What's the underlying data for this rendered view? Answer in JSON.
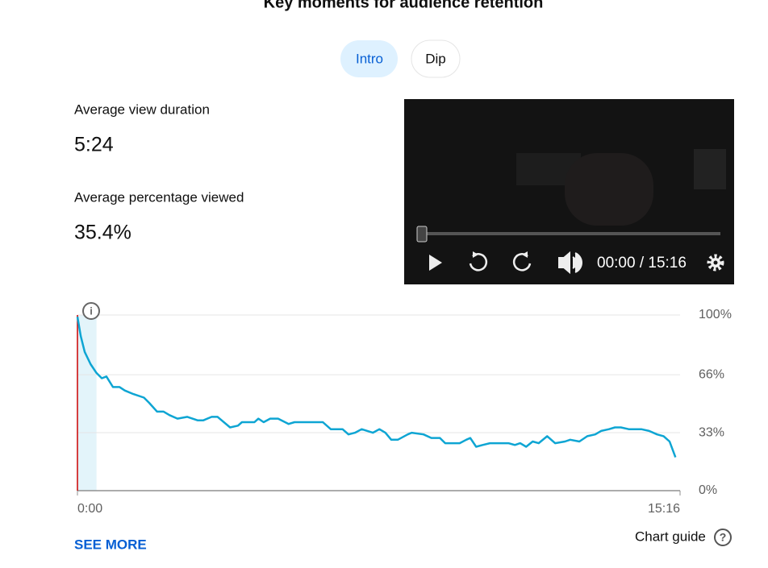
{
  "header": {
    "title": "Key moments for audience retention"
  },
  "tabs": [
    {
      "label": "Intro",
      "selected": true
    },
    {
      "label": "Dip",
      "selected": false
    }
  ],
  "stats": [
    {
      "label": "Average view duration",
      "value": "5:24"
    },
    {
      "label": "Average percentage viewed",
      "value": "35.4%"
    }
  ],
  "player": {
    "time": "00:00 / 15:16"
  },
  "chart": {
    "type": "line",
    "color": "#0ea5d3",
    "grid": true,
    "x": [
      0,
      5,
      11,
      20,
      29,
      37,
      44,
      54,
      64,
      72,
      85,
      101,
      109,
      121,
      131,
      140,
      152,
      167,
      183,
      191,
      204,
      213,
      232,
      244,
      250,
      269,
      275,
      283,
      293,
      305,
      321,
      330,
      373,
      385,
      403,
      412,
      422,
      432,
      449,
      459,
      468,
      477,
      487,
      502,
      508,
      526,
      538,
      551,
      559,
      581,
      591,
      597,
      606,
      616,
      627,
      643,
      655,
      665,
      673,
      682,
      692,
      701,
      714,
      726,
      741,
      749,
      763,
      775,
      787,
      796,
      808,
      817,
      826,
      838,
      857,
      869,
      881,
      891,
      900,
      909
    ],
    "values": [
      99,
      88,
      79,
      72,
      67,
      64,
      65,
      59,
      59,
      57,
      55,
      53,
      50,
      45,
      45,
      43,
      41,
      42,
      40,
      40,
      42,
      42,
      36,
      37,
      39,
      39,
      41,
      39,
      41,
      41,
      38,
      39,
      39,
      35,
      35,
      32,
      33,
      35,
      33,
      35,
      33,
      29,
      29,
      32,
      33,
      32,
      30,
      30,
      27,
      27,
      29,
      30,
      25,
      26,
      27,
      27,
      27,
      26,
      27,
      25,
      28,
      27,
      31,
      27,
      28,
      29,
      28,
      31,
      32,
      34,
      35,
      36,
      36,
      35,
      35,
      34,
      32,
      31,
      28,
      19
    ],
    "highlight": [
      0,
      29
    ],
    "xlim": [
      0,
      916
    ],
    "ylim": [
      0,
      100
    ],
    "xticks": [
      {
        "value": 0,
        "label": "0:00"
      },
      {
        "value": 916,
        "label": "15:16"
      }
    ],
    "yticks": [
      {
        "value": 0,
        "label": "0%"
      },
      {
        "value": 33,
        "label": "33%"
      },
      {
        "value": 66,
        "label": "66%"
      },
      {
        "value": 100,
        "label": "100%"
      }
    ]
  },
  "links": {
    "see_more": "SEE MORE",
    "chart_guide": "Chart guide"
  }
}
